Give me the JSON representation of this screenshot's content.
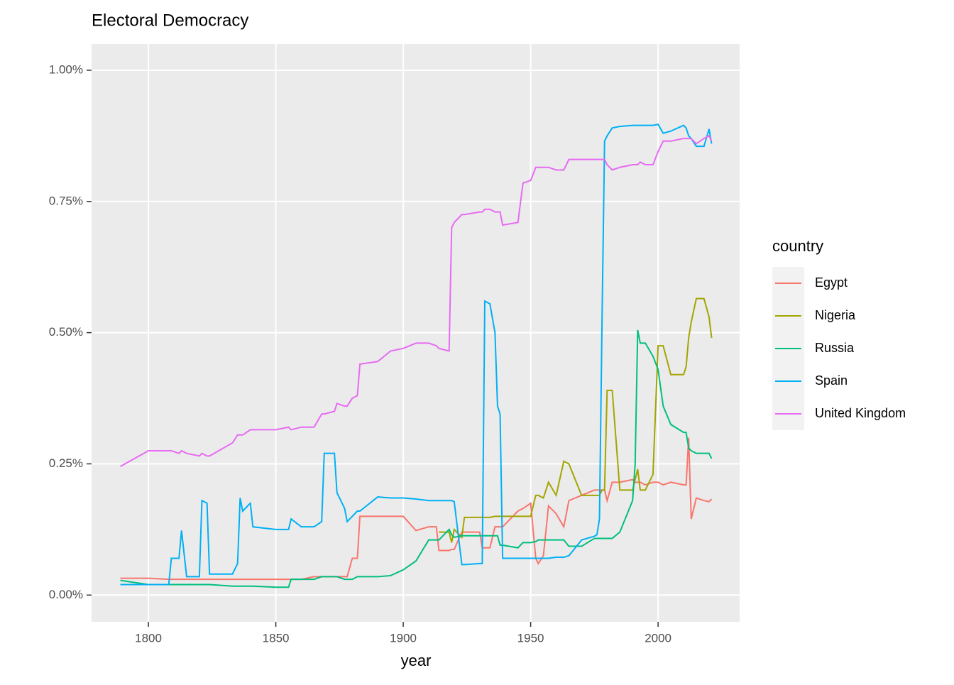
{
  "chart_data": {
    "type": "line",
    "title": "Electoral Democracy",
    "x_label": "year",
    "legend_title": "country",
    "x": [
      1789,
      1800,
      1808,
      1809,
      1812,
      1813,
      1815,
      1820,
      1821,
      1823,
      1824,
      1833,
      1835,
      1836,
      1837,
      1840,
      1841,
      1850,
      1855,
      1856,
      1860,
      1865,
      1868,
      1869,
      1873,
      1874,
      1877,
      1878,
      1880,
      1882,
      1883,
      1890,
      1895,
      1900,
      1905,
      1910,
      1913,
      1914,
      1918,
      1919,
      1920,
      1923,
      1924,
      1930,
      1931,
      1932,
      1934,
      1936,
      1937,
      1938,
      1939,
      1945,
      1947,
      1950,
      1952,
      1953,
      1955,
      1957,
      1960,
      1963,
      1965,
      1970,
      1975,
      1976,
      1977,
      1978,
      1979,
      1980,
      1982,
      1985,
      1990,
      1991,
      1992,
      1993,
      1995,
      1998,
      2000,
      2002,
      2005,
      2010,
      2011,
      2012,
      2013,
      2015,
      2018,
      2020,
      2021
    ],
    "series": [
      {
        "name": "Egypt",
        "color": "#F8766D",
        "values": [
          0.032,
          0.032,
          0.03,
          0.03,
          0.03,
          0.03,
          0.03,
          0.03,
          0.03,
          0.03,
          0.03,
          0.03,
          0.03,
          0.03,
          0.03,
          0.03,
          0.03,
          0.03,
          0.03,
          0.03,
          0.03,
          0.035,
          0.035,
          0.035,
          0.035,
          0.035,
          0.035,
          0.035,
          0.07,
          0.07,
          0.15,
          0.15,
          0.15,
          0.15,
          0.123,
          0.13,
          0.13,
          0.085,
          0.085,
          0.087,
          0.087,
          0.12,
          0.12,
          0.12,
          0.09,
          0.09,
          0.09,
          0.13,
          0.13,
          0.13,
          0.13,
          0.16,
          0.165,
          0.175,
          0.07,
          0.06,
          0.075,
          0.17,
          0.155,
          0.13,
          0.18,
          0.19,
          0.2,
          0.2,
          0.2,
          0.2,
          0.2,
          0.18,
          0.215,
          0.215,
          0.22,
          0.215,
          0.215,
          0.215,
          0.21,
          0.215,
          0.215,
          0.21,
          0.215,
          0.21,
          0.21,
          0.3,
          0.145,
          0.185,
          0.18,
          0.178,
          0.183
        ]
      },
      {
        "name": "Nigeria",
        "color": "#A3A500",
        "values": [
          null,
          null,
          null,
          null,
          null,
          null,
          null,
          null,
          null,
          null,
          null,
          null,
          null,
          null,
          null,
          null,
          null,
          null,
          null,
          null,
          null,
          null,
          null,
          null,
          null,
          null,
          null,
          null,
          null,
          null,
          null,
          null,
          null,
          null,
          null,
          null,
          null,
          0.12,
          0.12,
          0.1,
          0.125,
          0.11,
          0.148,
          0.148,
          0.148,
          0.148,
          0.148,
          0.15,
          0.15,
          0.15,
          0.15,
          0.15,
          0.15,
          0.15,
          0.19,
          0.19,
          0.185,
          0.215,
          0.19,
          0.255,
          0.25,
          0.19,
          0.19,
          0.19,
          0.19,
          0.2,
          0.2,
          0.39,
          0.39,
          0.2,
          0.2,
          0.22,
          0.24,
          0.2,
          0.2,
          0.23,
          0.475,
          0.475,
          0.42,
          0.42,
          0.435,
          0.49,
          0.52,
          0.565,
          0.565,
          0.53,
          0.49
        ]
      },
      {
        "name": "Russia",
        "color": "#00BF7D",
        "values": [
          0.028,
          0.02,
          0.02,
          0.02,
          0.02,
          0.02,
          0.02,
          0.02,
          0.02,
          0.02,
          0.02,
          0.017,
          0.017,
          0.017,
          0.017,
          0.017,
          0.017,
          0.015,
          0.015,
          0.03,
          0.03,
          0.03,
          0.035,
          0.035,
          0.035,
          0.035,
          0.03,
          0.03,
          0.03,
          0.035,
          0.035,
          0.035,
          0.037,
          0.048,
          0.065,
          0.105,
          0.105,
          0.105,
          0.125,
          0.115,
          0.11,
          0.113,
          0.113,
          0.113,
          0.113,
          0.113,
          0.113,
          0.113,
          0.113,
          0.095,
          0.095,
          0.09,
          0.1,
          0.1,
          0.102,
          0.105,
          0.105,
          0.105,
          0.105,
          0.105,
          0.093,
          0.093,
          0.108,
          0.108,
          0.108,
          0.108,
          0.108,
          0.108,
          0.108,
          0.12,
          0.18,
          0.25,
          0.505,
          0.48,
          0.48,
          0.455,
          0.43,
          0.36,
          0.325,
          0.31,
          0.31,
          0.28,
          0.275,
          0.27,
          0.27,
          0.27,
          0.26
        ]
      },
      {
        "name": "Spain",
        "color": "#00B0F6",
        "values": [
          0.02,
          0.02,
          0.02,
          0.07,
          0.07,
          0.123,
          0.035,
          0.035,
          0.18,
          0.175,
          0.04,
          0.04,
          0.06,
          0.185,
          0.16,
          0.175,
          0.13,
          0.125,
          0.125,
          0.145,
          0.13,
          0.13,
          0.14,
          0.27,
          0.27,
          0.195,
          0.165,
          0.14,
          0.15,
          0.16,
          0.16,
          0.187,
          0.185,
          0.185,
          0.183,
          0.18,
          0.18,
          0.18,
          0.18,
          0.18,
          0.178,
          0.058,
          0.058,
          0.06,
          0.06,
          0.56,
          0.555,
          0.5,
          0.36,
          0.345,
          0.07,
          0.07,
          0.07,
          0.07,
          0.07,
          0.07,
          0.07,
          0.07,
          0.072,
          0.072,
          0.075,
          0.105,
          0.112,
          0.115,
          0.145,
          0.52,
          0.865,
          0.875,
          0.89,
          0.893,
          0.895,
          0.895,
          0.895,
          0.895,
          0.895,
          0.895,
          0.897,
          0.88,
          0.884,
          0.895,
          0.89,
          0.875,
          0.87,
          0.855,
          0.855,
          0.888,
          0.86
        ]
      },
      {
        "name": "United Kingdom",
        "color": "#E76BF3",
        "values": [
          0.245,
          0.275,
          0.275,
          0.275,
          0.27,
          0.275,
          0.27,
          0.265,
          0.27,
          0.265,
          0.265,
          0.29,
          0.305,
          0.305,
          0.305,
          0.315,
          0.315,
          0.315,
          0.32,
          0.315,
          0.32,
          0.32,
          0.345,
          0.345,
          0.35,
          0.365,
          0.36,
          0.36,
          0.375,
          0.38,
          0.44,
          0.445,
          0.465,
          0.47,
          0.48,
          0.48,
          0.475,
          0.47,
          0.465,
          0.7,
          0.71,
          0.725,
          0.725,
          0.73,
          0.73,
          0.735,
          0.735,
          0.73,
          0.73,
          0.73,
          0.705,
          0.71,
          0.785,
          0.79,
          0.815,
          0.815,
          0.815,
          0.815,
          0.81,
          0.81,
          0.83,
          0.83,
          0.83,
          0.83,
          0.83,
          0.83,
          0.83,
          0.82,
          0.81,
          0.815,
          0.82,
          0.82,
          0.82,
          0.825,
          0.82,
          0.82,
          0.845,
          0.865,
          0.865,
          0.87,
          0.87,
          0.87,
          0.87,
          0.86,
          0.87,
          0.875,
          0.865
        ]
      }
    ],
    "xlim": [
      1777.7,
      2032
    ],
    "ylim": [
      -0.051,
      1.05
    ],
    "xticks": [
      1800,
      1850,
      1900,
      1950,
      2000
    ],
    "yticks": [
      {
        "value": 0,
        "label": "0.00%"
      },
      {
        "value": 0.25,
        "label": "0.25%"
      },
      {
        "value": 0.5,
        "label": "0.50%"
      },
      {
        "value": 0.75,
        "label": "0.75%"
      },
      {
        "value": 1,
        "label": "1.00%"
      }
    ],
    "grid": true,
    "legend_position": "right"
  }
}
